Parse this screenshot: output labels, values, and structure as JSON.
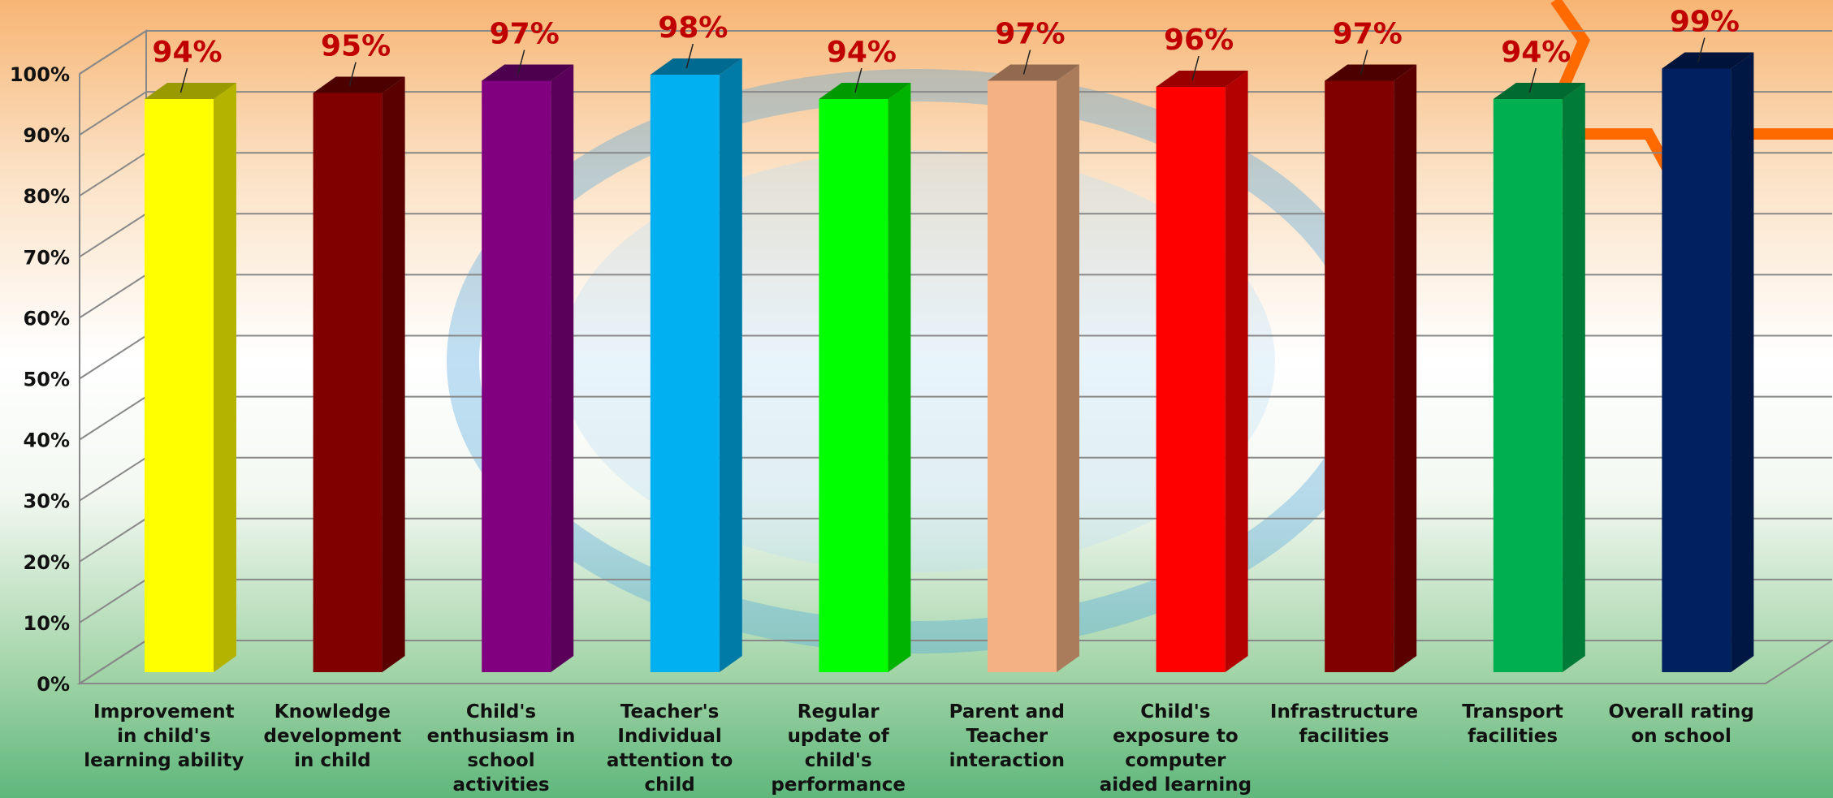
{
  "chart_data": {
    "type": "bar3d",
    "categories": [
      "Improvement in child's learning ability",
      "Knowledge development in child",
      "Child's enthusiasm in school activities",
      "Teacher's Individual attention to child",
      "Regular update of child's performance",
      "Parent and Teacher interaction",
      "Child's exposure to computer aided learning",
      "Infrastructure facilities",
      "Transport facilities",
      "Overall rating on school"
    ],
    "values": [
      94,
      95,
      97,
      98,
      94,
      97,
      96,
      97,
      94,
      99
    ],
    "value_labels": [
      "94%",
      "95%",
      "97%",
      "98%",
      "94%",
      "97%",
      "96%",
      "97%",
      "94%",
      "99%"
    ],
    "colors": [
      "#ffff00",
      "#800000",
      "#800080",
      "#00b0f0",
      "#00ff00",
      "#f4b183",
      "#ff0000",
      "#800000",
      "#00b050",
      "#002060"
    ],
    "ylim": [
      0,
      100
    ],
    "yticks": [
      {
        "value": 0,
        "label": "0%"
      },
      {
        "value": 10,
        "label": "10%"
      },
      {
        "value": 20,
        "label": "20%"
      },
      {
        "value": 30,
        "label": "30%"
      },
      {
        "value": 40,
        "label": "40%"
      },
      {
        "value": 50,
        "label": "50%"
      },
      {
        "value": 60,
        "label": "60%"
      },
      {
        "value": 70,
        "label": "70%"
      },
      {
        "value": 80,
        "label": "80%"
      },
      {
        "value": 90,
        "label": "90%"
      },
      {
        "value": 100,
        "label": "100%"
      }
    ],
    "grid": true
  }
}
